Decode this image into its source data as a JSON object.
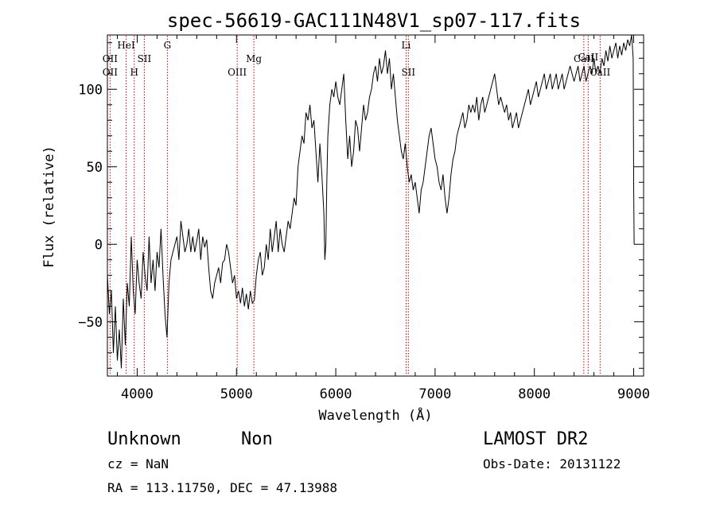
{
  "chart_data": {
    "type": "line",
    "title": "spec-56619-GAC111N48V1_sp07-117.fits",
    "xlabel": "Wavelength (Å)",
    "ylabel": "Flux (relative)",
    "xlim": [
      3700,
      9100
    ],
    "ylim": [
      -85,
      135
    ],
    "xticks": [
      4000,
      5000,
      6000,
      7000,
      8000,
      9000
    ],
    "xtick_labels": [
      "4000",
      "5000",
      "6000",
      "7000",
      "8000",
      "9000"
    ],
    "yticks": [
      -50,
      0,
      50,
      100
    ],
    "ytick_labels": [
      "−50",
      "0",
      "50",
      "100"
    ],
    "grid": false,
    "line_color": "#000000",
    "marker_color": "#cc0000",
    "series": [
      {
        "points": [
          [
            3700,
            -20
          ],
          [
            3720,
            -45
          ],
          [
            3740,
            -30
          ],
          [
            3760,
            -70
          ],
          [
            3780,
            -40
          ],
          [
            3800,
            -75
          ],
          [
            3820,
            -55
          ],
          [
            3840,
            -80
          ],
          [
            3860,
            -35
          ],
          [
            3880,
            -65
          ],
          [
            3900,
            -25
          ],
          [
            3920,
            -40
          ],
          [
            3940,
            5
          ],
          [
            3960,
            -30
          ],
          [
            3980,
            -45
          ],
          [
            4000,
            -10
          ],
          [
            4020,
            -25
          ],
          [
            4040,
            -35
          ],
          [
            4060,
            -5
          ],
          [
            4080,
            -20
          ],
          [
            4100,
            -30
          ],
          [
            4120,
            5
          ],
          [
            4140,
            -25
          ],
          [
            4160,
            -10
          ],
          [
            4180,
            -30
          ],
          [
            4200,
            -5
          ],
          [
            4220,
            -15
          ],
          [
            4240,
            10
          ],
          [
            4260,
            -20
          ],
          [
            4280,
            -45
          ],
          [
            4300,
            -60
          ],
          [
            4320,
            -25
          ],
          [
            4340,
            -10
          ],
          [
            4360,
            -5
          ],
          [
            4380,
            0
          ],
          [
            4400,
            5
          ],
          [
            4420,
            -10
          ],
          [
            4440,
            15
          ],
          [
            4460,
            5
          ],
          [
            4480,
            -5
          ],
          [
            4500,
            0
          ],
          [
            4520,
            10
          ],
          [
            4540,
            -5
          ],
          [
            4560,
            5
          ],
          [
            4580,
            -5
          ],
          [
            4600,
            2
          ],
          [
            4620,
            10
          ],
          [
            4640,
            -10
          ],
          [
            4660,
            5
          ],
          [
            4680,
            -2
          ],
          [
            4700,
            3
          ],
          [
            4720,
            -15
          ],
          [
            4740,
            -30
          ],
          [
            4760,
            -35
          ],
          [
            4780,
            -25
          ],
          [
            4800,
            -20
          ],
          [
            4820,
            -15
          ],
          [
            4840,
            -25
          ],
          [
            4860,
            -12
          ],
          [
            4880,
            -10
          ],
          [
            4900,
            0
          ],
          [
            4920,
            -5
          ],
          [
            4940,
            -15
          ],
          [
            4960,
            -25
          ],
          [
            4980,
            -20
          ],
          [
            5000,
            -35
          ],
          [
            5020,
            -30
          ],
          [
            5040,
            -38
          ],
          [
            5060,
            -28
          ],
          [
            5080,
            -40
          ],
          [
            5100,
            -32
          ],
          [
            5120,
            -42
          ],
          [
            5140,
            -30
          ],
          [
            5160,
            -38
          ],
          [
            5180,
            -36
          ],
          [
            5200,
            -20
          ],
          [
            5220,
            -10
          ],
          [
            5240,
            -5
          ],
          [
            5260,
            -20
          ],
          [
            5280,
            -15
          ],
          [
            5300,
            0
          ],
          [
            5320,
            -10
          ],
          [
            5340,
            10
          ],
          [
            5360,
            -5
          ],
          [
            5380,
            5
          ],
          [
            5400,
            15
          ],
          [
            5420,
            -5
          ],
          [
            5440,
            10
          ],
          [
            5460,
            0
          ],
          [
            5480,
            -5
          ],
          [
            5500,
            5
          ],
          [
            5520,
            15
          ],
          [
            5540,
            10
          ],
          [
            5560,
            20
          ],
          [
            5580,
            30
          ],
          [
            5600,
            25
          ],
          [
            5620,
            50
          ],
          [
            5640,
            60
          ],
          [
            5660,
            70
          ],
          [
            5680,
            65
          ],
          [
            5700,
            85
          ],
          [
            5720,
            80
          ],
          [
            5740,
            90
          ],
          [
            5760,
            75
          ],
          [
            5780,
            80
          ],
          [
            5800,
            60
          ],
          [
            5820,
            40
          ],
          [
            5840,
            65
          ],
          [
            5860,
            45
          ],
          [
            5880,
            20
          ],
          [
            5890,
            -10
          ],
          [
            5900,
            0
          ],
          [
            5910,
            40
          ],
          [
            5920,
            70
          ],
          [
            5940,
            90
          ],
          [
            5960,
            100
          ],
          [
            5980,
            95
          ],
          [
            6000,
            105
          ],
          [
            6020,
            95
          ],
          [
            6040,
            90
          ],
          [
            6060,
            100
          ],
          [
            6080,
            110
          ],
          [
            6100,
            80
          ],
          [
            6120,
            55
          ],
          [
            6140,
            70
          ],
          [
            6160,
            50
          ],
          [
            6180,
            60
          ],
          [
            6200,
            80
          ],
          [
            6220,
            75
          ],
          [
            6240,
            60
          ],
          [
            6260,
            75
          ],
          [
            6280,
            90
          ],
          [
            6300,
            80
          ],
          [
            6320,
            85
          ],
          [
            6340,
            95
          ],
          [
            6360,
            100
          ],
          [
            6380,
            110
          ],
          [
            6400,
            115
          ],
          [
            6420,
            105
          ],
          [
            6440,
            120
          ],
          [
            6460,
            110
          ],
          [
            6480,
            115
          ],
          [
            6500,
            125
          ],
          [
            6520,
            110
          ],
          [
            6540,
            120
          ],
          [
            6560,
            100
          ],
          [
            6580,
            110
          ],
          [
            6600,
            95
          ],
          [
            6620,
            80
          ],
          [
            6640,
            70
          ],
          [
            6660,
            60
          ],
          [
            6680,
            55
          ],
          [
            6700,
            65
          ],
          [
            6720,
            50
          ],
          [
            6740,
            40
          ],
          [
            6760,
            45
          ],
          [
            6780,
            35
          ],
          [
            6800,
            40
          ],
          [
            6820,
            30
          ],
          [
            6840,
            20
          ],
          [
            6860,
            35
          ],
          [
            6880,
            40
          ],
          [
            6900,
            50
          ],
          [
            6920,
            60
          ],
          [
            6940,
            70
          ],
          [
            6960,
            75
          ],
          [
            6980,
            65
          ],
          [
            7000,
            55
          ],
          [
            7020,
            50
          ],
          [
            7040,
            40
          ],
          [
            7060,
            35
          ],
          [
            7080,
            45
          ],
          [
            7100,
            30
          ],
          [
            7120,
            20
          ],
          [
            7140,
            30
          ],
          [
            7160,
            45
          ],
          [
            7180,
            55
          ],
          [
            7200,
            60
          ],
          [
            7220,
            70
          ],
          [
            7240,
            75
          ],
          [
            7260,
            80
          ],
          [
            7280,
            85
          ],
          [
            7300,
            75
          ],
          [
            7320,
            80
          ],
          [
            7340,
            90
          ],
          [
            7360,
            85
          ],
          [
            7380,
            90
          ],
          [
            7400,
            85
          ],
          [
            7420,
            95
          ],
          [
            7440,
            80
          ],
          [
            7460,
            90
          ],
          [
            7480,
            95
          ],
          [
            7500,
            85
          ],
          [
            7520,
            90
          ],
          [
            7540,
            95
          ],
          [
            7560,
            100
          ],
          [
            7580,
            105
          ],
          [
            7600,
            110
          ],
          [
            7620,
            100
          ],
          [
            7640,
            90
          ],
          [
            7660,
            95
          ],
          [
            7680,
            90
          ],
          [
            7700,
            85
          ],
          [
            7720,
            90
          ],
          [
            7740,
            80
          ],
          [
            7760,
            85
          ],
          [
            7780,
            75
          ],
          [
            7800,
            80
          ],
          [
            7820,
            85
          ],
          [
            7840,
            75
          ],
          [
            7860,
            80
          ],
          [
            7880,
            85
          ],
          [
            7900,
            90
          ],
          [
            7920,
            95
          ],
          [
            7940,
            100
          ],
          [
            7960,
            90
          ],
          [
            7980,
            95
          ],
          [
            8000,
            100
          ],
          [
            8020,
            105
          ],
          [
            8040,
            95
          ],
          [
            8060,
            100
          ],
          [
            8080,
            105
          ],
          [
            8100,
            110
          ],
          [
            8120,
            100
          ],
          [
            8140,
            105
          ],
          [
            8160,
            110
          ],
          [
            8180,
            100
          ],
          [
            8200,
            105
          ],
          [
            8220,
            110
          ],
          [
            8240,
            100
          ],
          [
            8260,
            105
          ],
          [
            8280,
            110
          ],
          [
            8300,
            100
          ],
          [
            8320,
            105
          ],
          [
            8340,
            110
          ],
          [
            8360,
            115
          ],
          [
            8380,
            110
          ],
          [
            8400,
            105
          ],
          [
            8420,
            110
          ],
          [
            8440,
            115
          ],
          [
            8460,
            105
          ],
          [
            8480,
            110
          ],
          [
            8500,
            115
          ],
          [
            8520,
            105
          ],
          [
            8540,
            110
          ],
          [
            8560,
            115
          ],
          [
            8580,
            110
          ],
          [
            8600,
            120
          ],
          [
            8620,
            110
          ],
          [
            8640,
            115
          ],
          [
            8660,
            110
          ],
          [
            8680,
            120
          ],
          [
            8700,
            115
          ],
          [
            8720,
            125
          ],
          [
            8740,
            118
          ],
          [
            8760,
            128
          ],
          [
            8780,
            120
          ],
          [
            8800,
            125
          ],
          [
            8820,
            130
          ],
          [
            8840,
            120
          ],
          [
            8860,
            128
          ],
          [
            8880,
            122
          ],
          [
            8900,
            130
          ],
          [
            8920,
            125
          ],
          [
            8940,
            132
          ],
          [
            8960,
            128
          ],
          [
            8980,
            135
          ],
          [
            8995,
            120
          ],
          [
            9000,
            40
          ],
          [
            9005,
            0
          ]
        ]
      }
    ],
    "spectral_lines": [
      {
        "label": "OII",
        "x": 3727,
        "row": 2
      },
      {
        "label": "HeI",
        "x": 3889,
        "row": 0
      },
      {
        "label": "OII",
        "x": 3727,
        "row": 3
      },
      {
        "label": "H",
        "x": 3970,
        "row": 3
      },
      {
        "label": "SII",
        "x": 4072,
        "row": 2
      },
      {
        "label": "G",
        "x": 4304,
        "row": 0
      },
      {
        "label": "OIII",
        "x": 5007,
        "row": 3
      },
      {
        "label": "Mg",
        "x": 5175,
        "row": 2
      },
      {
        "label": "Li",
        "x": 6708,
        "row": 0
      },
      {
        "label": "SII",
        "x": 6731,
        "row": 3
      },
      {
        "label": "CaII",
        "x": 8542,
        "row": 1
      },
      {
        "label": "CaII",
        "x": 8498,
        "row": 2
      },
      {
        "label": "CaII",
        "x": 8662,
        "row": 3
      }
    ]
  },
  "info": {
    "class": "Unknown",
    "subclass": "Non",
    "survey": "LAMOST DR2",
    "cz": "cz = NaN",
    "obs_date": "Obs-Date: 20131122",
    "coords": "RA = 113.11750, DEC =  47.13988"
  }
}
